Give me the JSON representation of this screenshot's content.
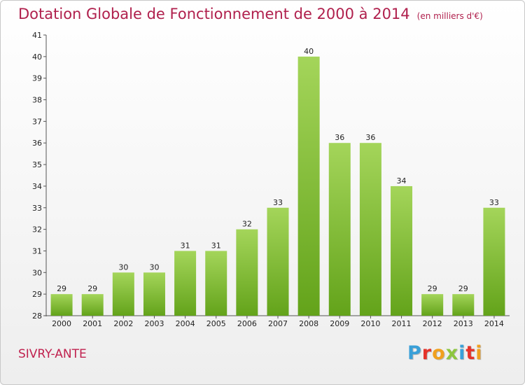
{
  "title": "Dotation Globale de Fonctionnement de 2000 à 2014",
  "unit": "(en milliers d'€)",
  "commune": "SIVRY-ANTE",
  "logo": {
    "text": "Proxiti",
    "colors": [
      "#3aa0d8",
      "#e5332a",
      "#f0a01e",
      "#8dc63f",
      "#3aa0d8",
      "#e5332a",
      "#f0a01e"
    ]
  },
  "colors": {
    "bar_light": "#a4d55a",
    "bar_dark": "#63a31a",
    "title": "#b0204d"
  },
  "chart_data": {
    "type": "bar",
    "categories": [
      "2000",
      "2001",
      "2002",
      "2003",
      "2004",
      "2005",
      "2006",
      "2007",
      "2008",
      "2009",
      "2010",
      "2011",
      "2012",
      "2013",
      "2014"
    ],
    "values": [
      29,
      29,
      30,
      30,
      31,
      31,
      32,
      33,
      40,
      36,
      36,
      34,
      29,
      29,
      33
    ],
    "ylim": [
      28,
      41
    ],
    "yticks": [
      28,
      29,
      30,
      31,
      32,
      33,
      34,
      35,
      36,
      37,
      38,
      39,
      40,
      41
    ],
    "grid": false,
    "legend": "none"
  }
}
